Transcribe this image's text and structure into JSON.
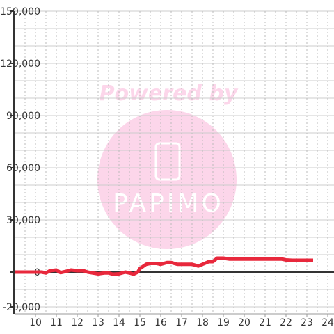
{
  "chart_data": {
    "type": "line",
    "watermark": [
      "Powered by",
      "PAPIMO"
    ],
    "x": [
      9,
      9.5,
      10,
      10.3,
      10.5,
      10.7,
      11,
      11.2,
      11.5,
      11.7,
      12,
      12.3,
      12.5,
      13,
      13.3,
      13.5,
      13.7,
      14,
      14.3,
      14.5,
      14.7,
      14.9,
      15,
      15.3,
      15.5,
      15.8,
      16,
      16.3,
      16.5,
      16.8,
      17,
      17.5,
      17.8,
      18,
      18.3,
      18.5,
      18.7,
      19,
      19.3,
      20,
      21,
      21.8,
      22,
      22.3,
      23,
      23.3
    ],
    "series": [
      {
        "color": "#e8283c",
        "values": [
          0,
          0,
          0,
          0,
          -500,
          800,
          1200,
          -300,
          500,
          1200,
          800,
          800,
          0,
          -1000,
          -500,
          -500,
          -1200,
          -1000,
          0,
          -500,
          -1200,
          0,
          2000,
          4500,
          5000,
          5000,
          4500,
          5500,
          5500,
          4500,
          4500,
          4500,
          3500,
          4500,
          6000,
          6000,
          8000,
          8000,
          7500,
          7500,
          7500,
          7500,
          7000,
          6800,
          6800,
          6800
        ]
      }
    ],
    "xlim": [
      9,
      24.3
    ],
    "xticks": [
      10,
      11,
      12,
      13,
      14,
      15,
      16,
      17,
      18,
      19,
      20,
      21,
      22,
      23,
      24
    ],
    "x_minor_ticks": [
      9.5,
      10.5,
      11.5,
      12.5,
      13.5,
      14.5,
      15.5,
      16.5,
      17.5,
      18.5,
      19.5,
      20.5,
      21.5,
      22.5,
      23.5
    ],
    "ylim": [
      -24000,
      150000
    ],
    "yticks": [
      {
        "value": -20000,
        "label": "-20,000"
      },
      0,
      {
        "value": 30000,
        "label": "30,000"
      },
      {
        "value": 60000,
        "label": "60,000"
      },
      {
        "value": 90000,
        "label": "90,000"
      },
      {
        "value": 120000,
        "label": "120,000"
      },
      {
        "value": 150000,
        "label": "150,000"
      }
    ],
    "y_minor_ticks": [
      -10000,
      10000,
      20000,
      40000,
      50000,
      70000,
      80000,
      100000,
      110000,
      130000,
      140000
    ],
    "grid": true
  }
}
